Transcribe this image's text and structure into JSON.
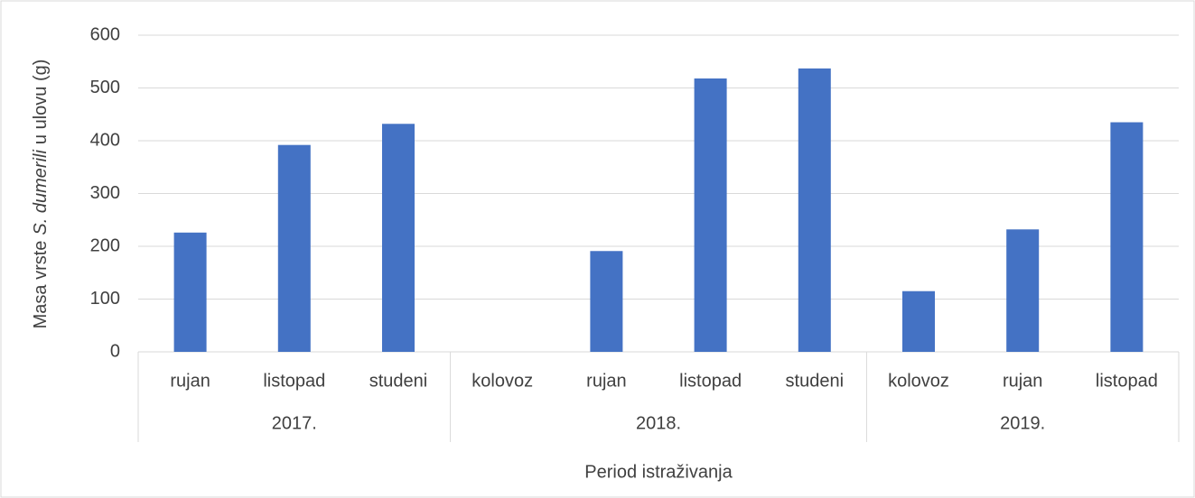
{
  "chart_data": {
    "type": "bar",
    "y_label": [
      "Masa vrste",
      "S. dumerili",
      "u ulovu (g)"
    ],
    "x_label": "Period istraživanja",
    "color": "#4472c4",
    "groups": [
      {
        "name": "2017.",
        "categories": [
          "rujan",
          "listopad",
          "studeni"
        ],
        "values": [
          226,
          392,
          432
        ]
      },
      {
        "name": "2018.",
        "categories": [
          "kolovoz",
          "rujan",
          "listopad",
          "studeni"
        ],
        "values": [
          0,
          191,
          518,
          537
        ]
      },
      {
        "name": "2019.",
        "categories": [
          "kolovoz",
          "rujan",
          "listopad"
        ],
        "values": [
          115,
          232,
          435
        ]
      }
    ],
    "ylim": [
      0,
      600
    ],
    "yticks": [
      0,
      100,
      200,
      300,
      400,
      500,
      600
    ],
    "grid": true
  }
}
